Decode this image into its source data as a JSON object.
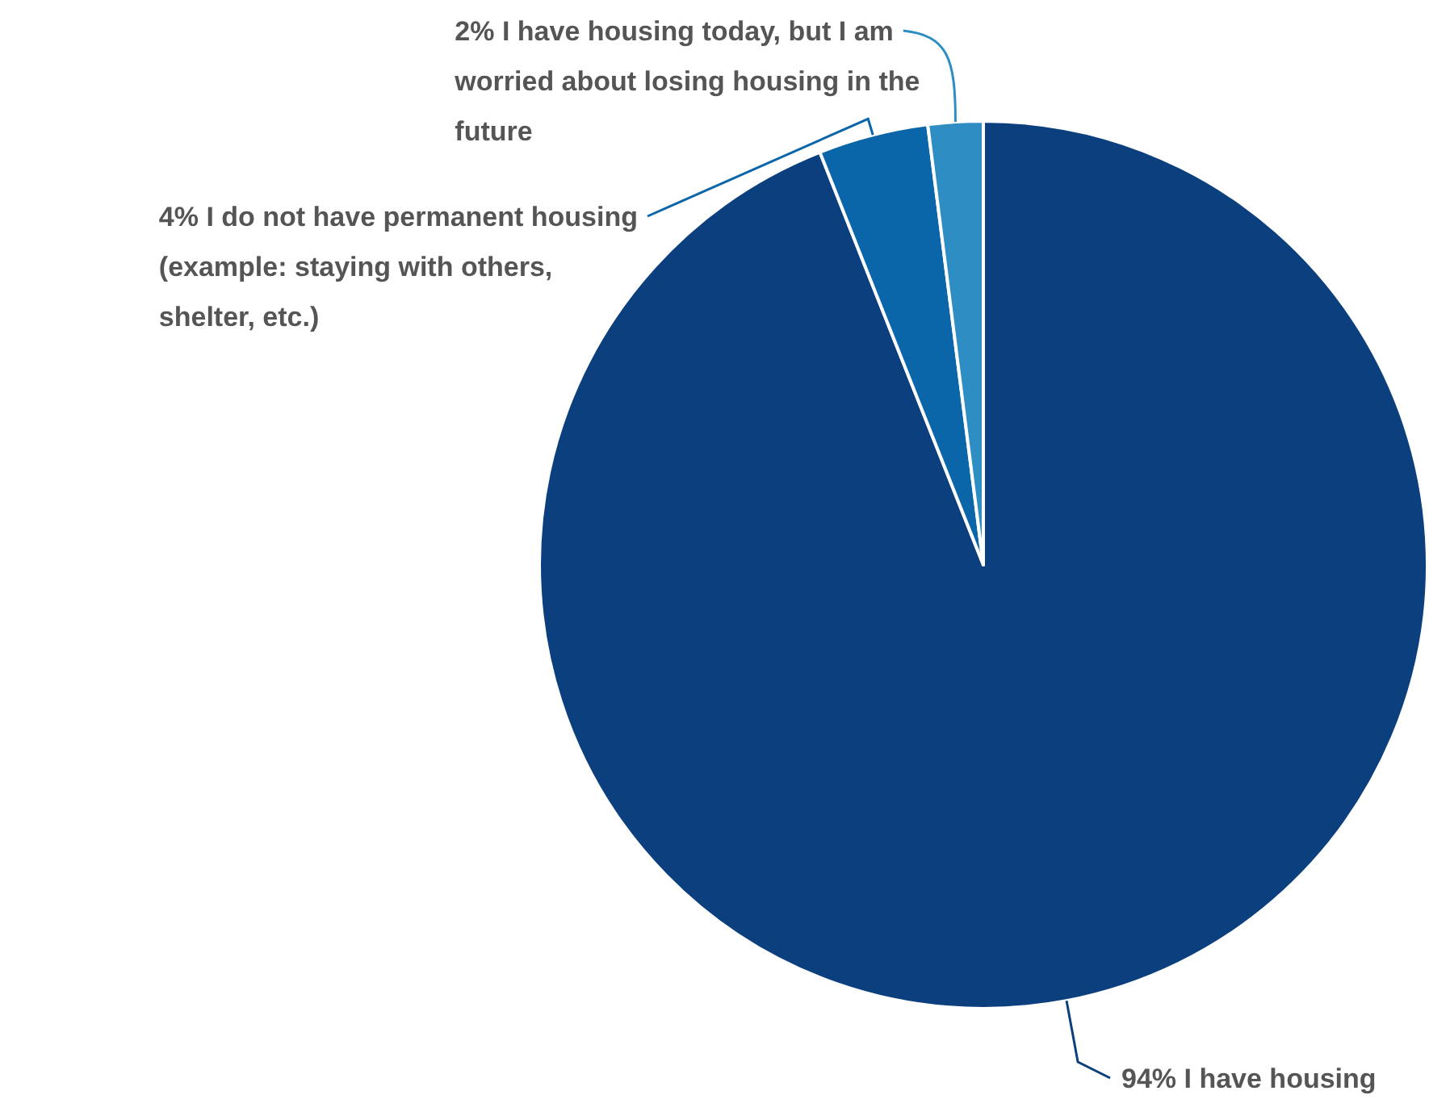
{
  "chart_data": {
    "type": "pie",
    "categories": [
      "94% I have housing",
      "4% I do not have permanent housing (example: staying with others, shelter, etc.)",
      "2% I have housing today, but I am worried about losing housing in the future"
    ],
    "values": [
      94,
      4,
      2
    ],
    "colors": [
      "#0b3f7e",
      "#0a66a8",
      "#2e8ec4"
    ]
  }
}
